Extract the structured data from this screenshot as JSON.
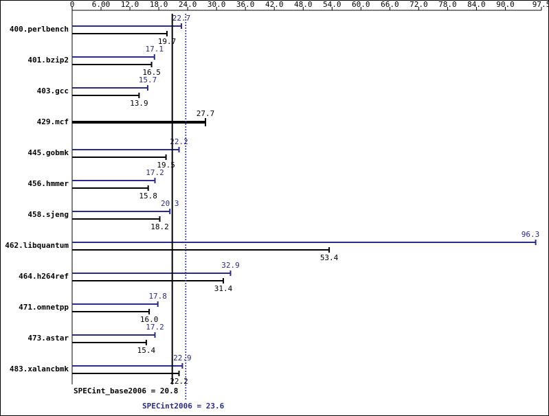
{
  "chart_data": {
    "type": "bar",
    "orientation": "horizontal",
    "categories": [
      "400.perlbench",
      "401.bzip2",
      "403.gcc",
      "429.mcf",
      "445.gobmk",
      "456.hmmer",
      "458.sjeng",
      "462.libquantum",
      "464.h264ref",
      "471.omnetpp",
      "473.astar",
      "483.xalancbmk"
    ],
    "series": [
      {
        "color": "#2a2a8c",
        "values": [
          22.7,
          17.1,
          15.7,
          null,
          22.2,
          17.2,
          20.3,
          96.3,
          32.9,
          17.8,
          17.2,
          22.9
        ]
      },
      {
        "color": "#000000",
        "values": [
          19.7,
          16.5,
          13.9,
          27.7,
          19.5,
          15.8,
          18.2,
          53.4,
          31.4,
          16.0,
          15.4,
          22.2
        ],
        "value_labels": [
          "19.7",
          "16.5",
          "13.9",
          "27.7",
          "19.5",
          "15.8",
          "18.2",
          "53.4",
          "31.4",
          "16.0",
          "15.4",
          "22.2"
        ]
      }
    ],
    "xlim": [
      0,
      97.5
    ],
    "xticks": [
      0,
      {
        "value": 6,
        "label": "6.00"
      },
      {
        "value": 12,
        "label": "12.0"
      },
      {
        "value": 18,
        "label": "18.0"
      },
      {
        "value": 24,
        "label": "24.0"
      },
      {
        "value": 30,
        "label": "30.0"
      },
      {
        "value": 36,
        "label": "36.0"
      },
      {
        "value": 42,
        "label": "42.0"
      },
      {
        "value": 48,
        "label": "48.0"
      },
      {
        "value": 54,
        "label": "54.0"
      },
      {
        "value": 60,
        "label": "60.0"
      },
      {
        "value": 66,
        "label": "66.0"
      },
      {
        "value": 72,
        "label": "72.0"
      },
      {
        "value": 78,
        "label": "78.0"
      },
      {
        "value": 84,
        "label": "84.0"
      },
      {
        "value": 90,
        "label": "90.0"
      },
      97.5
    ],
    "reference_lines": [
      {
        "text": "SPECint_base2006 = 20.8",
        "value": 20.8,
        "color": "#000000",
        "style": "solid"
      },
      {
        "text": "SPECint2006 = 23.6",
        "value": 23.6,
        "color": "#2a2a8c",
        "style": "dotted"
      }
    ]
  }
}
